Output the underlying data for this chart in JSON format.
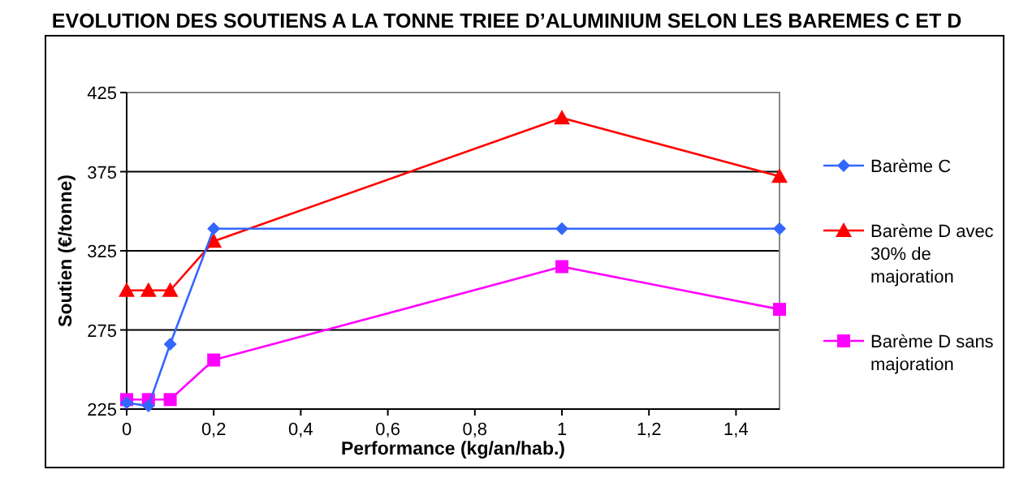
{
  "chart_data": {
    "type": "line",
    "title": "EVOLUTION DES SOUTIENS A LA TONNE TRIEE D’ALUMINIUM SELON LES BAREMES C ET D",
    "xlabel": "Performance (kg/an/hab.)",
    "ylabel": "Soutien (€/tonne)",
    "x": [
      0,
      0.05,
      0.1,
      0.2,
      1,
      1.5
    ],
    "series": [
      {
        "name": "Barème C",
        "color": "#3366ff",
        "marker": "diamond",
        "values": [
          229,
          227,
          266,
          339,
          339,
          339
        ]
      },
      {
        "name": "Barème D avec 30% de majoration",
        "color": "#ff0000",
        "marker": "triangle",
        "values": [
          300,
          300,
          300,
          331,
          409,
          372
        ]
      },
      {
        "name": "Barème D sans majoration",
        "color": "#ff00ff",
        "marker": "square",
        "values": [
          231,
          231,
          231,
          256,
          315,
          288
        ]
      }
    ],
    "xlim": [
      0,
      1.5
    ],
    "xticks": [
      {
        "value": 0,
        "label": "0"
      },
      {
        "value": 0.2,
        "label": "0,2"
      },
      {
        "value": 0.4,
        "label": "0,4"
      },
      {
        "value": 0.6,
        "label": "0,6"
      },
      {
        "value": 0.8,
        "label": "0,8"
      },
      {
        "value": 1,
        "label": "1"
      },
      {
        "value": 1.2,
        "label": "1,2"
      },
      {
        "value": 1.4,
        "label": "1,4"
      }
    ],
    "ylim": [
      225,
      425
    ],
    "yticks": [
      225,
      275,
      325,
      375,
      425
    ],
    "grid": "y",
    "legend": "right"
  }
}
